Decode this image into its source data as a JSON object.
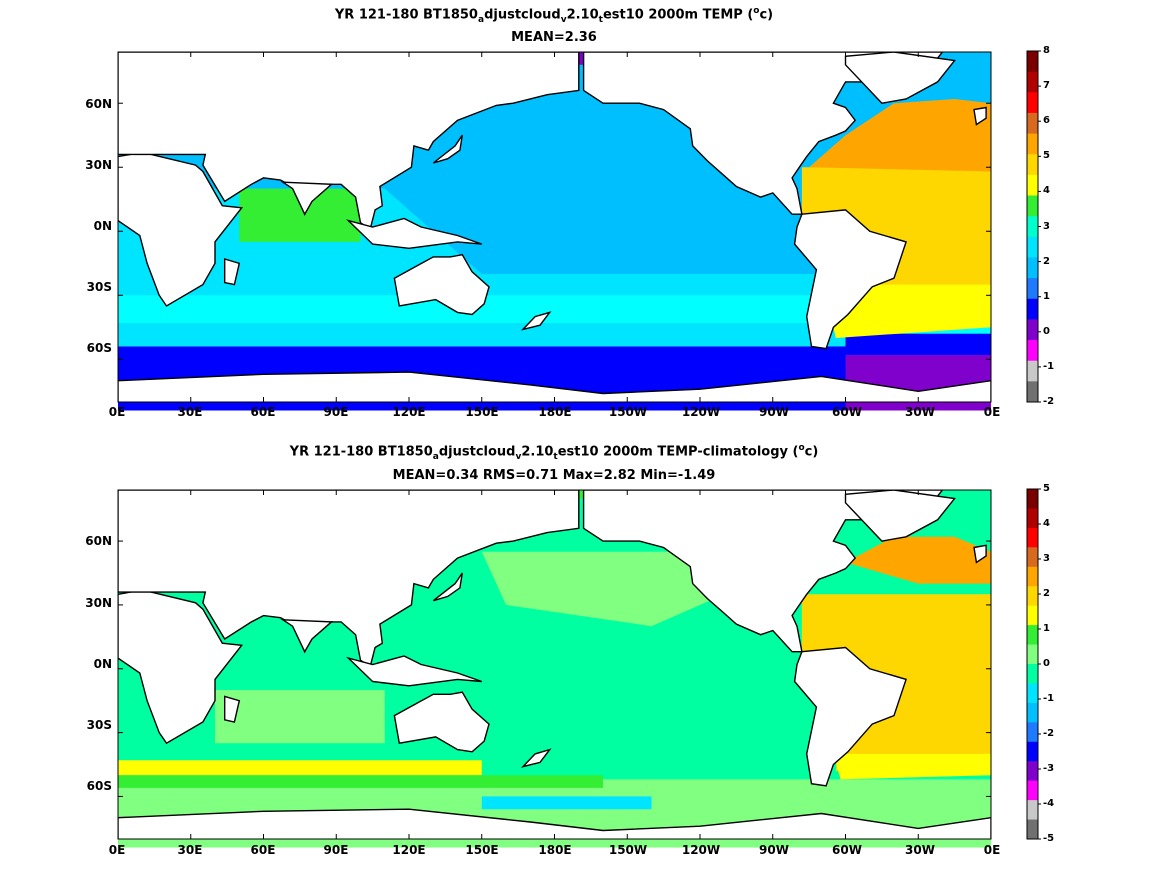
{
  "panels": [
    {
      "title_parts": [
        "YR 121-180 BT1850",
        "a",
        "djustcloud",
        "v",
        "2.10",
        "t",
        "est10 2000m TEMP (",
        "o",
        "c)"
      ],
      "stats": "MEAN=2.36",
      "yticks": [
        "60N",
        "30N",
        "0N",
        "30S",
        "60S"
      ],
      "xticks": [
        "0E",
        "30E",
        "60E",
        "90E",
        "120E",
        "150E",
        "180E",
        "150W",
        "120W",
        "90W",
        "60W",
        "30W",
        "0E"
      ],
      "colorbar": {
        "labels": [
          "8",
          "7",
          "6",
          "5",
          "4",
          "3",
          "2",
          "1",
          "0",
          "-1",
          "-2"
        ],
        "colors": [
          "#7a0000",
          "#b00000",
          "#ff0000",
          "#d86a20",
          "#ffa500",
          "#ffd700",
          "#ffff00",
          "#33ee33",
          "#00ffcc",
          "#00e5ff",
          "#00bfff",
          "#1e7bff",
          "#0000ff",
          "#8000cc",
          "#ff00ff",
          "#c8c8c8",
          "#707070"
        ]
      }
    },
    {
      "title_parts": [
        "YR 121-180 BT1850",
        "a",
        "djustcloud",
        "v",
        "2.10",
        "t",
        "est10 2000m TEMP-climatology (",
        "o",
        "c)"
      ],
      "stats": "MEAN=0.34   RMS=0.71   Max=2.82   Min=-1.49",
      "yticks": [
        "60N",
        "30N",
        "0N",
        "30S",
        "60S"
      ],
      "xticks": [
        "0E",
        "30E",
        "60E",
        "90E",
        "120E",
        "150E",
        "180E",
        "150W",
        "120W",
        "90W",
        "60W",
        "30W",
        "0E"
      ],
      "colorbar": {
        "labels": [
          "5",
          "4",
          "3",
          "2",
          "1",
          "0",
          "-1",
          "-2",
          "-3",
          "-4",
          "-5"
        ],
        "colors": [
          "#7a0000",
          "#b00000",
          "#ff0000",
          "#d86a20",
          "#ffa500",
          "#ffd700",
          "#ffff00",
          "#33ee33",
          "#80ff80",
          "#00ffa0",
          "#00e5ff",
          "#00bfff",
          "#1e7bff",
          "#0000ff",
          "#8000cc",
          "#ff00ff",
          "#c8c8c8",
          "#707070"
        ]
      }
    }
  ],
  "field_colors": {
    "land": "#ffffff",
    "coast": "#000000",
    "p1_ocean": "#00bfff",
    "p1_indian": "#00e5ff",
    "p1_south": "#00ffff",
    "p1_southband": "#0000ff",
    "p1_arctic": "#8000cc",
    "p1_atlantic": "#ffd700",
    "p1_natl": "#ffa500",
    "p1_satl": "#ffff00",
    "p1_green": "#33ee33",
    "p2_ocean": "#00ffa0",
    "p2_green": "#80ff80",
    "p2_atlantic": "#ffd700",
    "p2_natl": "#ffa500",
    "p2_band": "#ffff00",
    "p2_bgreen": "#33ee33",
    "p2_cyan": "#00e5ff"
  }
}
